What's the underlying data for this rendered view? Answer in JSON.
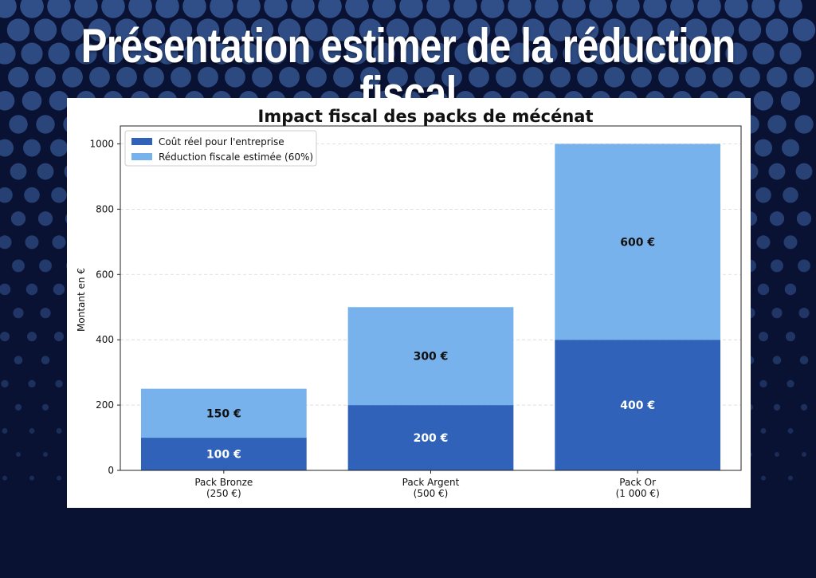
{
  "page": {
    "title": "Présentation estimer de la réduction fiscal"
  },
  "colors": {
    "background": "#0a1233",
    "dots": "#3a5f9e",
    "cost": "#2f62b8",
    "reduction": "#78b2ec"
  },
  "chart_data": {
    "type": "bar",
    "stacked": true,
    "title": "Impact fiscal des packs de mécénat",
    "xlabel": "",
    "ylabel": "Montant en €",
    "categories": [
      [
        "Pack Bronze",
        "(250 €)"
      ],
      [
        "Pack Argent",
        "(500 €)"
      ],
      [
        "Pack Or",
        "(1 000 €)"
      ]
    ],
    "series": [
      {
        "name": "Coût réel pour l'entreprise",
        "values": [
          100,
          200,
          400
        ],
        "labels": [
          "100 €",
          "200 €",
          "400 €"
        ]
      },
      {
        "name": "Réduction fiscale estimée (60%)",
        "values": [
          150,
          300,
          600
        ],
        "labels": [
          "150 €",
          "300 €",
          "600 €"
        ]
      }
    ],
    "ylim": [
      0,
      1050
    ],
    "yticks": [
      0,
      200,
      400,
      600,
      800,
      1000
    ],
    "grid": "horizontal dashed",
    "legend": "top-left"
  }
}
